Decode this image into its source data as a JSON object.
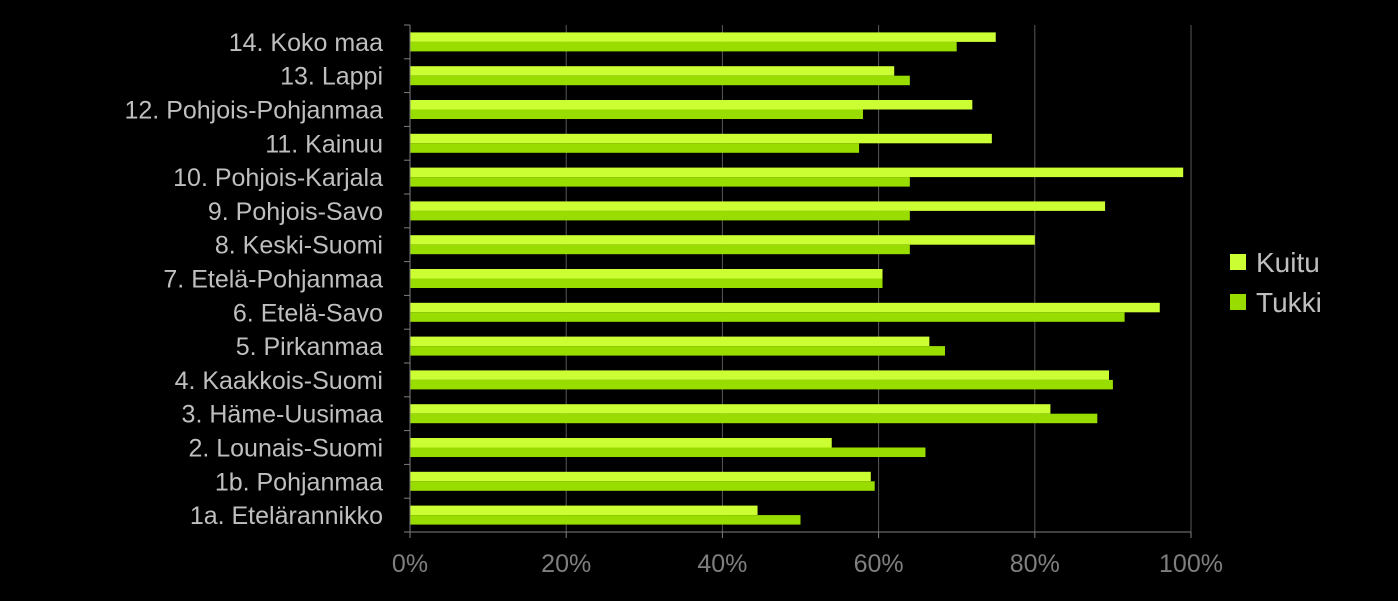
{
  "chart_data": {
    "type": "bar",
    "orientation": "horizontal",
    "title": "",
    "xlabel": "",
    "ylabel": "",
    "xlim": [
      0,
      1
    ],
    "x_ticks": [
      "0%",
      "20%",
      "40%",
      "60%",
      "80%",
      "100%"
    ],
    "grid": true,
    "legend_position": "right",
    "categories": [
      "14. Koko maa",
      "13. Lappi",
      "12. Pohjois-Pohjanmaa",
      "11. Kainuu",
      "10. Pohjois-Karjala",
      "9. Pohjois-Savo",
      "8. Keski-Suomi",
      "7. Etelä-Pohjanmaa",
      "6. Etelä-Savo",
      "5. Pirkanmaa",
      "4. Kaakkois-Suomi",
      "3. Häme-Uusimaa",
      "2. Lounais-Suomi",
      "1b. Pohjanmaa",
      "1a. Etelärannikko"
    ],
    "series": [
      {
        "name": "Kuitu",
        "color": "#ccff33",
        "values": [
          0.75,
          0.62,
          0.72,
          0.745,
          0.99,
          0.89,
          0.8,
          0.605,
          0.96,
          0.665,
          0.895,
          0.82,
          0.54,
          0.59,
          0.445
        ]
      },
      {
        "name": "Tukki",
        "color": "#99dd00",
        "values": [
          0.7,
          0.64,
          0.58,
          0.575,
          0.64,
          0.64,
          0.64,
          0.605,
          0.915,
          0.685,
          0.9,
          0.88,
          0.66,
          0.595,
          0.5
        ]
      }
    ]
  }
}
